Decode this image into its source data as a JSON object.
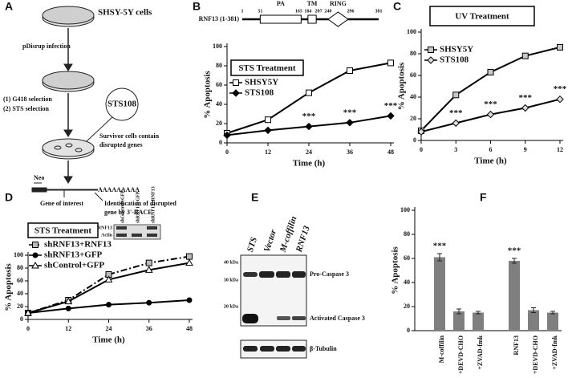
{
  "panel_labels": [
    "A",
    "B",
    "C",
    "D",
    "E",
    "F"
  ],
  "schematic": {
    "cells": "SHSY-5Y cells",
    "infection": "pDisrup infection",
    "selection": [
      "(1)  G418 selection",
      "(2)  STS selection"
    ],
    "clone": "STS108",
    "survivor": [
      "Survivor cells contain",
      "disrupted genes"
    ],
    "neo": "Neo",
    "polya": "AAAAAAAAA",
    "gene": "Gene of interest",
    "race": [
      "Identification of disrupted",
      "gene by 3'-RACE"
    ]
  },
  "blot": {
    "lanes": [
      "STS",
      "Vector",
      "M-coffilin",
      "RNF13"
    ],
    "markers": [
      "40 kDa",
      "30 kDa",
      "20 kDa"
    ],
    "bands": [
      "Pro-Caspase 3",
      "Activated Caspase 3",
      "β-Tubulin"
    ]
  },
  "chart_data": [
    {
      "type": "line",
      "title": "STS Treatment",
      "xlabel": "Time (h)",
      "ylabel": "% Apoptosis",
      "x": [
        0,
        12,
        24,
        36,
        48
      ],
      "xlim": [
        0,
        48
      ],
      "xticks": [
        0,
        12,
        24,
        36,
        48
      ],
      "ylim": [
        0,
        100
      ],
      "yticks": [
        0,
        20,
        40,
        60,
        80,
        100
      ],
      "legend": "upper left",
      "series": [
        {
          "name": "SHSY5Y",
          "color": "#000000",
          "marker": "square",
          "marker_fill": "#ffffff",
          "values": [
            10,
            24,
            52,
            75,
            83
          ]
        },
        {
          "name": "STS108",
          "color": "#000000",
          "marker": "diamond",
          "marker_fill": "#000000",
          "values": [
            8,
            13,
            17,
            21,
            28
          ]
        }
      ],
      "significance": [
        null,
        null,
        "***",
        "***",
        "***"
      ],
      "domain_diagram": {
        "label": "RNF13 (1-381)",
        "ends": [
          1,
          381
        ],
        "domains": [
          {
            "name": "PA",
            "start": 51,
            "end": 165
          },
          {
            "name": "TM",
            "start": 184,
            "end": 207
          },
          {
            "name": "RING",
            "start": 240,
            "end": 296
          }
        ]
      }
    },
    {
      "type": "line",
      "title": "UV Treatment",
      "xlabel": "Time (h)",
      "ylabel": "% Apoptosis",
      "x": [
        0,
        3,
        6,
        9,
        12
      ],
      "xlim": [
        0,
        12
      ],
      "xticks": [
        0,
        3,
        6,
        9,
        12
      ],
      "ylim": [
        0,
        100
      ],
      "yticks": [
        0,
        20,
        40,
        60,
        80,
        100
      ],
      "legend": "upper left",
      "series": [
        {
          "name": "SHSY5Y",
          "color": "#000000",
          "marker": "square",
          "marker_fill": "#c8c8c8",
          "values": [
            9,
            42,
            63,
            78,
            86
          ]
        },
        {
          "name": "STS108",
          "color": "#000000",
          "marker": "diamond",
          "marker_fill": "#dddddd",
          "values": [
            8,
            16,
            24,
            30,
            38
          ]
        }
      ],
      "significance": [
        null,
        "***",
        "***",
        "***",
        "***"
      ]
    },
    {
      "type": "line",
      "title": "STS Treatment",
      "xlabel": "Time (h)",
      "ylabel": "% Apoptosis",
      "x": [
        0,
        12,
        24,
        36,
        48
      ],
      "xlim": [
        0,
        48
      ],
      "xticks": [
        0,
        12,
        24,
        36,
        48
      ],
      "ylim": [
        0,
        100
      ],
      "yticks": [
        0,
        20,
        40,
        60,
        80,
        100
      ],
      "legend": "upper left",
      "series": [
        {
          "name": "shRNF13+RNF13",
          "color": "#000000",
          "marker": "square",
          "marker_fill": "#bbbbbb",
          "dash": "dashdot",
          "values": [
            10,
            30,
            70,
            88,
            98
          ]
        },
        {
          "name": "shRNF13+GFP",
          "color": "#000000",
          "marker": "circle",
          "marker_fill": "#000000",
          "values": [
            10,
            17,
            23,
            26,
            30
          ]
        },
        {
          "name": "shControl+GFP",
          "color": "#000000",
          "marker": "triangle",
          "marker_fill": "#ffffff",
          "values": [
            10,
            28,
            62,
            77,
            88
          ]
        }
      ],
      "inset": {
        "columns": [
          "shControl+GFP",
          "shRNF13+GFP",
          "shRNF13+RNF13"
        ],
        "rows": [
          "RNF13",
          "Actin"
        ]
      }
    },
    {
      "type": "bar",
      "ylabel": "% Apoptosis",
      "categories": [
        "M-coffilin",
        "+DEVD-CHO",
        "+ZVAD-fmk",
        "RNF13",
        "+DEVD-CHO",
        "+ZVAD-fmk"
      ],
      "values": [
        61,
        16,
        15,
        58,
        17,
        15
      ],
      "errors": [
        3,
        2,
        1,
        2,
        2,
        1
      ],
      "color": "#7f7f7f",
      "ylim": [
        0,
        100
      ],
      "yticks": [
        0,
        20,
        40,
        60,
        80,
        100
      ],
      "significance": [
        "***",
        null,
        null,
        "***",
        null,
        null
      ]
    }
  ]
}
